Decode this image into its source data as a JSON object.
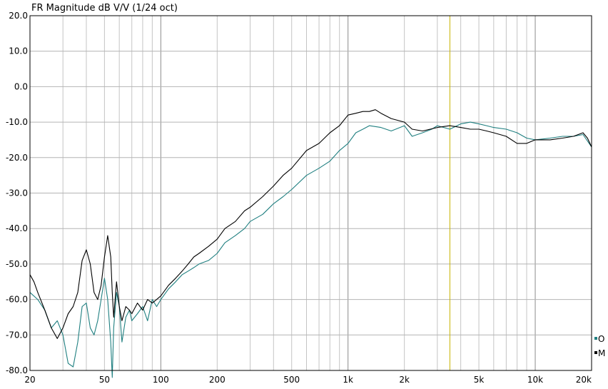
{
  "chart_data": {
    "type": "line",
    "title": "FR Magnitude dB V/V (1/24 oct)",
    "xscale": "log",
    "xlim": [
      20,
      20000
    ],
    "ylim": [
      -80,
      20
    ],
    "grid": true,
    "legend_position": "bottom-right",
    "y_ticks": [
      "20.0",
      "10.0",
      "0.0",
      "-10.0",
      "-20.0",
      "-30.0",
      "-40.0",
      "-50.0",
      "-60.0",
      "-70.0",
      "-80.0"
    ],
    "x_ticks": [
      {
        "label": "20",
        "value": 20
      },
      {
        "label": "50",
        "value": 50
      },
      {
        "label": "100",
        "value": 100
      },
      {
        "label": "200",
        "value": 200
      },
      {
        "label": "500",
        "value": 500
      },
      {
        "label": "1k",
        "value": 1000
      },
      {
        "label": "2k",
        "value": 2000
      },
      {
        "label": "5k",
        "value": 5000
      },
      {
        "label": "10k",
        "value": 10000
      },
      {
        "label": "20k",
        "value": 20000
      }
    ],
    "cursor_x": 3500,
    "series": [
      {
        "name": "O",
        "color": "#1f7f80",
        "x": [
          20,
          22,
          24,
          26,
          28,
          30,
          32,
          34,
          36,
          38,
          40,
          42,
          44,
          46,
          48,
          50,
          52,
          54,
          55,
          56,
          58,
          60,
          62,
          65,
          68,
          70,
          75,
          80,
          85,
          90,
          95,
          100,
          110,
          120,
          130,
          140,
          150,
          160,
          180,
          200,
          220,
          250,
          280,
          300,
          350,
          400,
          450,
          500,
          600,
          700,
          800,
          900,
          1000,
          1100,
          1200,
          1300,
          1500,
          1700,
          2000,
          2200,
          2500,
          2800,
          3000,
          3500,
          4000,
          4500,
          5000,
          5500,
          6000,
          7000,
          8000,
          9000,
          10000,
          12000,
          14000,
          16000,
          18000,
          20000
        ],
        "y": [
          -58,
          -60,
          -63,
          -68,
          -66,
          -70,
          -78,
          -79,
          -72,
          -62,
          -61,
          -68,
          -70,
          -66,
          -60,
          -54,
          -60,
          -72,
          -82,
          -68,
          -58,
          -62,
          -72,
          -65,
          -63,
          -66,
          -64,
          -62,
          -66,
          -60,
          -62,
          -60,
          -57,
          -55,
          -53,
          -52,
          -51,
          -50,
          -49,
          -47,
          -44,
          -42,
          -40,
          -38,
          -36,
          -33,
          -31,
          -29,
          -25,
          -23,
          -21,
          -18,
          -16,
          -13,
          -12,
          -11,
          -11.5,
          -12.5,
          -11,
          -14,
          -13,
          -12,
          -11,
          -12,
          -10.5,
          -10,
          -10.5,
          -11,
          -11.5,
          -12,
          -13,
          -14.5,
          -15,
          -14.5,
          -14,
          -14,
          -13.5,
          -17
        ]
      },
      {
        "name": "M",
        "color": "#000000",
        "x": [
          20,
          21,
          22,
          24,
          26,
          28,
          30,
          32,
          34,
          36,
          38,
          40,
          42,
          44,
          46,
          48,
          50,
          52,
          54,
          55,
          56,
          58,
          60,
          62,
          65,
          68,
          70,
          75,
          80,
          85,
          90,
          95,
          100,
          110,
          120,
          130,
          140,
          150,
          160,
          180,
          200,
          220,
          250,
          280,
          300,
          350,
          400,
          450,
          500,
          600,
          700,
          800,
          900,
          1000,
          1100,
          1200,
          1300,
          1400,
          1500,
          1700,
          2000,
          2200,
          2500,
          3000,
          3500,
          4000,
          4500,
          5000,
          5500,
          6000,
          7000,
          8000,
          9000,
          10000,
          12000,
          14000,
          16000,
          18000,
          19000,
          20000
        ],
        "y": [
          -53,
          -55,
          -58,
          -63,
          -68,
          -71,
          -68,
          -64,
          -62,
          -58,
          -49,
          -46,
          -50,
          -58,
          -60,
          -56,
          -48,
          -42,
          -48,
          -58,
          -65,
          -55,
          -62,
          -66,
          -62,
          -63,
          -64,
          -61,
          -63,
          -60,
          -61,
          -60,
          -59,
          -56,
          -54,
          -52,
          -50,
          -48,
          -47,
          -45,
          -43,
          -40,
          -38,
          -35,
          -34,
          -31,
          -28,
          -25,
          -23,
          -18,
          -16,
          -13,
          -11,
          -8,
          -7.5,
          -7,
          -7,
          -6.5,
          -7.5,
          -9,
          -10,
          -12,
          -12.5,
          -11.5,
          -11,
          -11.5,
          -12,
          -12,
          -12.5,
          -13,
          -14,
          -16,
          -16,
          -15,
          -15,
          -14.5,
          -14,
          -13,
          -14.5,
          -17
        ]
      }
    ]
  }
}
